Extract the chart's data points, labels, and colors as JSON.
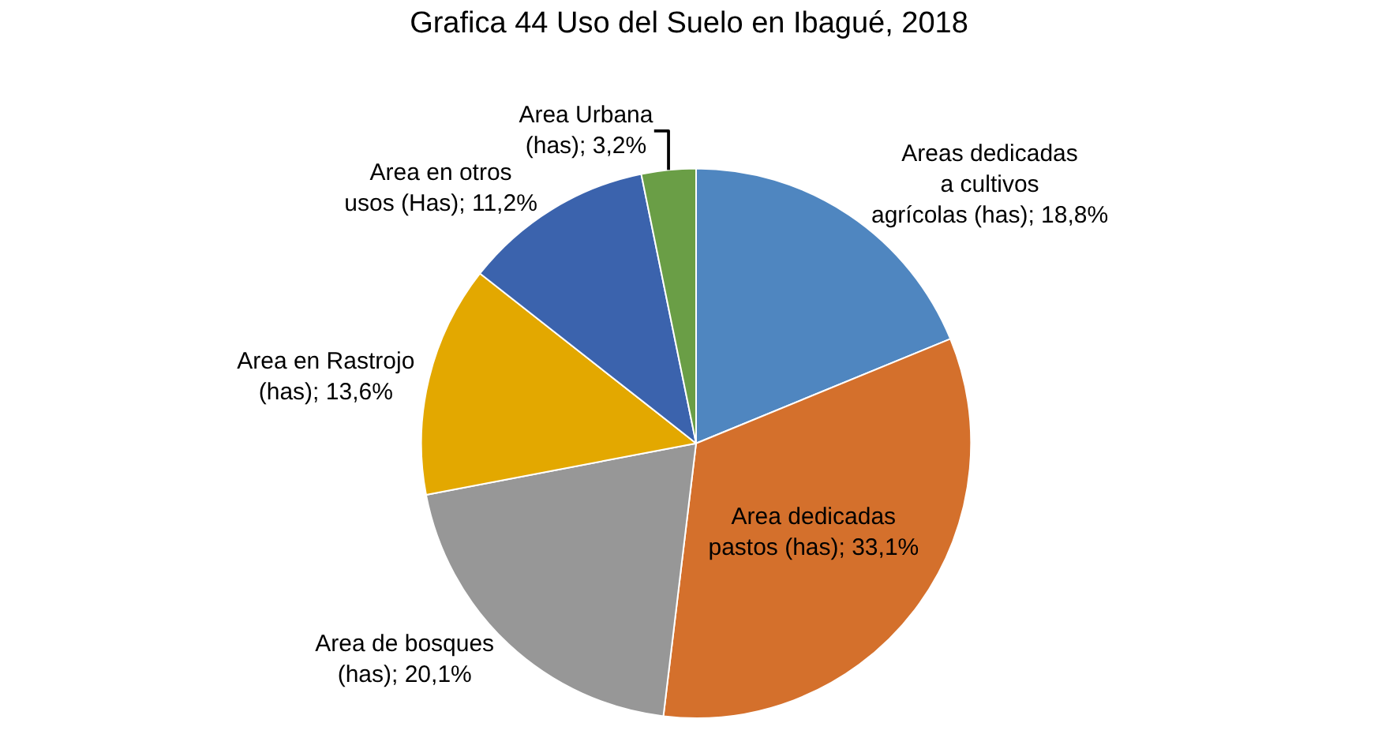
{
  "chart_data": {
    "type": "pie",
    "title": "Grafica 44 Uso del Suelo en Ibagué, 2018",
    "categories": [
      "Areas dedicadas a cultivos agrícolas (has)",
      "Area dedicadas pastos (has)",
      "Area de bosques (has)",
      "Area en Rastrojo (has)",
      "Area en otros usos (Has)",
      "Area Urbana (has)"
    ],
    "values": [
      18.8,
      33.1,
      20.1,
      13.6,
      11.2,
      3.2
    ],
    "value_labels": [
      "18,8%",
      "33,1%",
      "20,1%",
      "13,6%",
      "11,2%",
      "3,2%"
    ],
    "colors": [
      "#4f86c0",
      "#d4702c",
      "#979797",
      "#e3a800",
      "#3b63ad",
      "#6a9e46"
    ],
    "legend": false
  }
}
